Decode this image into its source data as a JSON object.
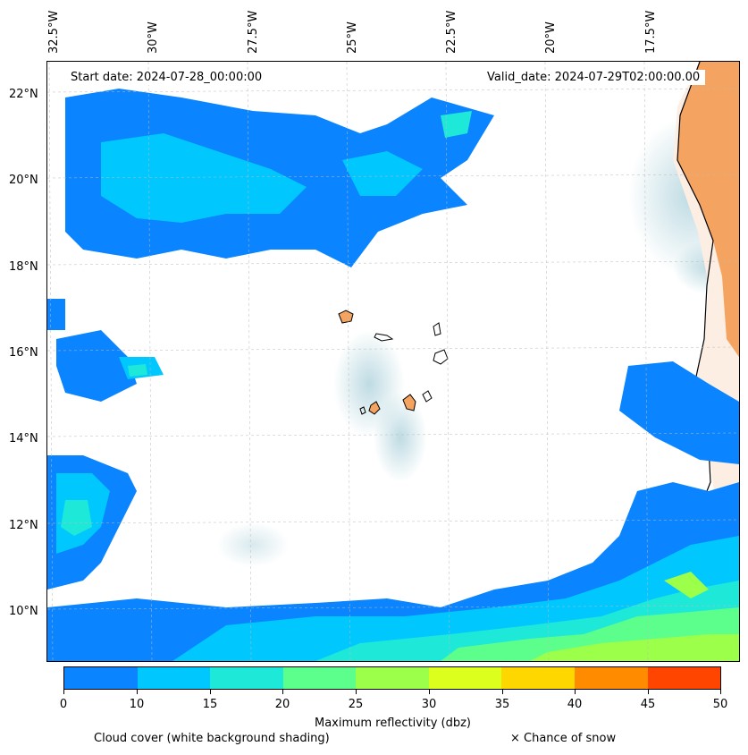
{
  "map": {
    "lon_labels": [
      "32.5°W",
      "30°W",
      "27.5°W",
      "25°W",
      "22.5°W",
      "20°W",
      "17.5°W"
    ],
    "lat_labels": [
      "22°N",
      "20°N",
      "18°N",
      "16°N",
      "14°N",
      "12°N",
      "10°N"
    ],
    "start_date": "Start date: 2024-07-28_00:00:00",
    "valid_date": "Valid_date: 2024-07-29T02:00:00.00",
    "land_color": "#f4a460",
    "cloud_color": "#a8cfd9"
  },
  "colorbar": {
    "title": "Maximum reflectivity (dbz)",
    "ticks": [
      "0",
      "10",
      "15",
      "20",
      "25",
      "30",
      "35",
      "40",
      "45",
      "50"
    ],
    "colors": [
      "#0a84ff",
      "#00c8ff",
      "#1ee8d8",
      "#5cff8c",
      "#9cff4a",
      "#dcff1e",
      "#ffd700",
      "#ff8c00",
      "#ff4500"
    ]
  },
  "notes": {
    "cloud": "Cloud cover (white background shading)",
    "snow": "× Chance of snow"
  }
}
